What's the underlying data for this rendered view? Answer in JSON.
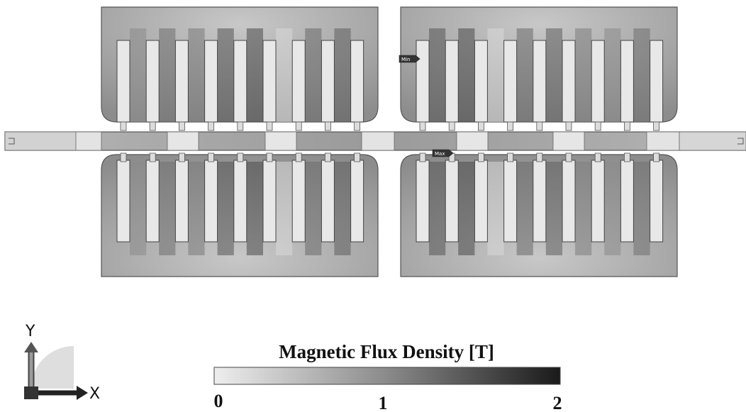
{
  "legend": {
    "title": "Magnetic Flux Density [T]",
    "ticks": [
      "0",
      "1",
      "2"
    ],
    "min_value": 0,
    "max_value": 2,
    "color_low": "#eeeeee",
    "color_high": "#1a1a1a"
  },
  "axes": {
    "y_label": "Y",
    "x_label": "X"
  },
  "probes": {
    "min_label": "Min",
    "max_label": "Max"
  },
  "stators": {
    "blocks_per_row": 2,
    "teeth_per_block": 9,
    "rows": [
      "upper",
      "lower"
    ]
  }
}
